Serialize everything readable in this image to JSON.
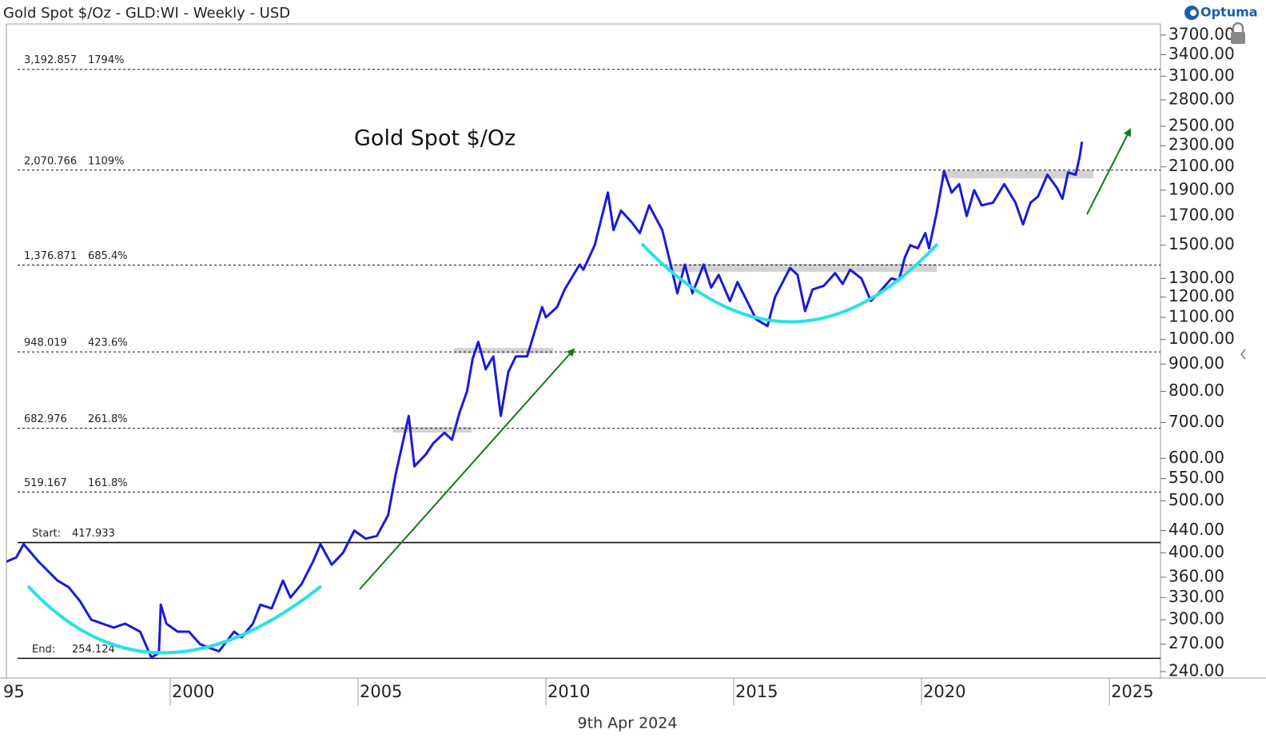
{
  "chart_data": {
    "type": "line",
    "title": "Gold Spot $/Oz - GLD:WI - Weekly - USD",
    "annotation": "Gold Spot $/Oz",
    "date_label": "9th Apr 2024",
    "brand": "Optuma",
    "log_scale": true,
    "xlim": [
      1995.64,
      2026.36
    ],
    "ylim": [
      233.5,
      3880
    ],
    "xticks": [
      {
        "value": 1995,
        "label": "95"
      },
      2000,
      2005,
      2010,
      2015,
      2020,
      2025
    ],
    "yticks": [
      {
        "value": 3700,
        "label": "3700.00"
      },
      {
        "value": 3400,
        "label": "3400.00"
      },
      {
        "value": 3100,
        "label": "3100.00"
      },
      {
        "value": 2800,
        "label": "2800.00"
      },
      {
        "value": 2500,
        "label": "2500.00"
      },
      {
        "value": 2300,
        "label": "2300.00"
      },
      {
        "value": 2100,
        "label": "2100.00"
      },
      {
        "value": 1900,
        "label": "1900.00"
      },
      {
        "value": 1700,
        "label": "1700.00"
      },
      {
        "value": 1500,
        "label": "1500.00"
      },
      {
        "value": 1300,
        "label": "1300.00"
      },
      {
        "value": 1200,
        "label": "1200.00"
      },
      {
        "value": 1100,
        "label": "1100.00"
      },
      {
        "value": 1000,
        "label": "1000.00"
      },
      {
        "value": 900,
        "label": "900.00"
      },
      {
        "value": 800,
        "label": "800.00"
      },
      {
        "value": 700,
        "label": "700.00"
      },
      {
        "value": 600,
        "label": "600.00"
      },
      {
        "value": 550,
        "label": "550.00"
      },
      {
        "value": 500,
        "label": "500.00"
      },
      {
        "value": 440,
        "label": "440.00"
      },
      {
        "value": 400,
        "label": "400.00"
      },
      {
        "value": 360,
        "label": "360.00"
      },
      {
        "value": 330,
        "label": "330.00"
      },
      {
        "value": 300,
        "label": "300.00"
      },
      {
        "value": 270,
        "label": "270.00"
      },
      {
        "value": 240,
        "label": "240.00"
      }
    ],
    "levels": [
      {
        "value": 3192.857,
        "value_label": "3,192.857",
        "percent": "1794%",
        "style": "dashed"
      },
      {
        "value": 2070.766,
        "value_label": "2,070.766",
        "percent": "1109%",
        "style": "dashed"
      },
      {
        "value": 1376.871,
        "value_label": "1,376.871",
        "percent": "685.4%",
        "style": "dashed"
      },
      {
        "value": 948.019,
        "value_label": "948.019",
        "percent": "423.6%",
        "style": "dashed"
      },
      {
        "value": 682.976,
        "value_label": "682.976",
        "percent": "261.8%",
        "style": "dashed"
      },
      {
        "value": 519.167,
        "value_label": "519.167",
        "percent": "161.8%",
        "style": "dashed"
      },
      {
        "name": "Start:",
        "value": 417.933,
        "style": "solid"
      },
      {
        "name": "End:",
        "value": 254.124,
        "style": "solid"
      }
    ],
    "series": [
      {
        "name": "Gold Spot $/Oz",
        "color": "#1a1adb",
        "x": [
          1995.64,
          1995.9,
          1996.1,
          1996.5,
          1997.0,
          1997.3,
          1997.6,
          1997.9,
          1998.2,
          1998.5,
          1998.8,
          1999.2,
          1999.5,
          1999.7,
          1999.75,
          1999.9,
          2000.2,
          2000.5,
          2000.8,
          2001.1,
          2001.3,
          2001.7,
          2001.9,
          2002.2,
          2002.4,
          2002.7,
          2003.0,
          2003.2,
          2003.5,
          2003.8,
          2004.0,
          2004.3,
          2004.6,
          2004.9,
          2005.2,
          2005.5,
          2005.8,
          2006.0,
          2006.35,
          2006.5,
          2006.8,
          2007.0,
          2007.3,
          2007.5,
          2007.7,
          2007.9,
          2008.05,
          2008.2,
          2008.4,
          2008.6,
          2008.8,
          2009.0,
          2009.2,
          2009.5,
          2009.9,
          2010.0,
          2010.3,
          2010.5,
          2010.9,
          2011.0,
          2011.3,
          2011.65,
          2011.8,
          2012.0,
          2012.3,
          2012.5,
          2012.75,
          2012.9,
          2013.1,
          2013.3,
          2013.5,
          2013.7,
          2013.9,
          2014.2,
          2014.4,
          2014.6,
          2014.9,
          2015.1,
          2015.3,
          2015.6,
          2015.9,
          2016.1,
          2016.5,
          2016.7,
          2016.9,
          2017.1,
          2017.4,
          2017.7,
          2017.9,
          2018.1,
          2018.4,
          2018.65,
          2018.9,
          2019.2,
          2019.4,
          2019.55,
          2019.7,
          2019.9,
          2020.1,
          2020.2,
          2020.4,
          2020.6,
          2020.8,
          2021.0,
          2021.2,
          2021.4,
          2021.6,
          2021.9,
          2022.2,
          2022.5,
          2022.7,
          2022.9,
          2023.1,
          2023.35,
          2023.6,
          2023.75,
          2023.9,
          2024.1,
          2024.2,
          2024.27
        ],
        "values": [
          385,
          392,
          415,
          385,
          355,
          345,
          325,
          300,
          295,
          290,
          295,
          285,
          255,
          260,
          320,
          295,
          285,
          285,
          270,
          265,
          262,
          285,
          278,
          295,
          320,
          315,
          355,
          330,
          350,
          385,
          415,
          380,
          400,
          440,
          425,
          430,
          470,
          560,
          720,
          580,
          610,
          640,
          670,
          650,
          730,
          800,
          920,
          990,
          880,
          930,
          720,
          870,
          930,
          930,
          1150,
          1100,
          1150,
          1240,
          1380,
          1350,
          1500,
          1880,
          1600,
          1740,
          1650,
          1580,
          1780,
          1700,
          1600,
          1400,
          1220,
          1380,
          1220,
          1380,
          1250,
          1320,
          1180,
          1280,
          1200,
          1090,
          1060,
          1200,
          1360,
          1320,
          1130,
          1240,
          1260,
          1330,
          1270,
          1350,
          1300,
          1180,
          1230,
          1300,
          1290,
          1420,
          1500,
          1480,
          1580,
          1480,
          1720,
          2060,
          1880,
          1950,
          1700,
          1900,
          1780,
          1800,
          1950,
          1800,
          1640,
          1800,
          1850,
          2030,
          1920,
          1830,
          2050,
          2030,
          2180,
          2340
        ]
      }
    ]
  }
}
